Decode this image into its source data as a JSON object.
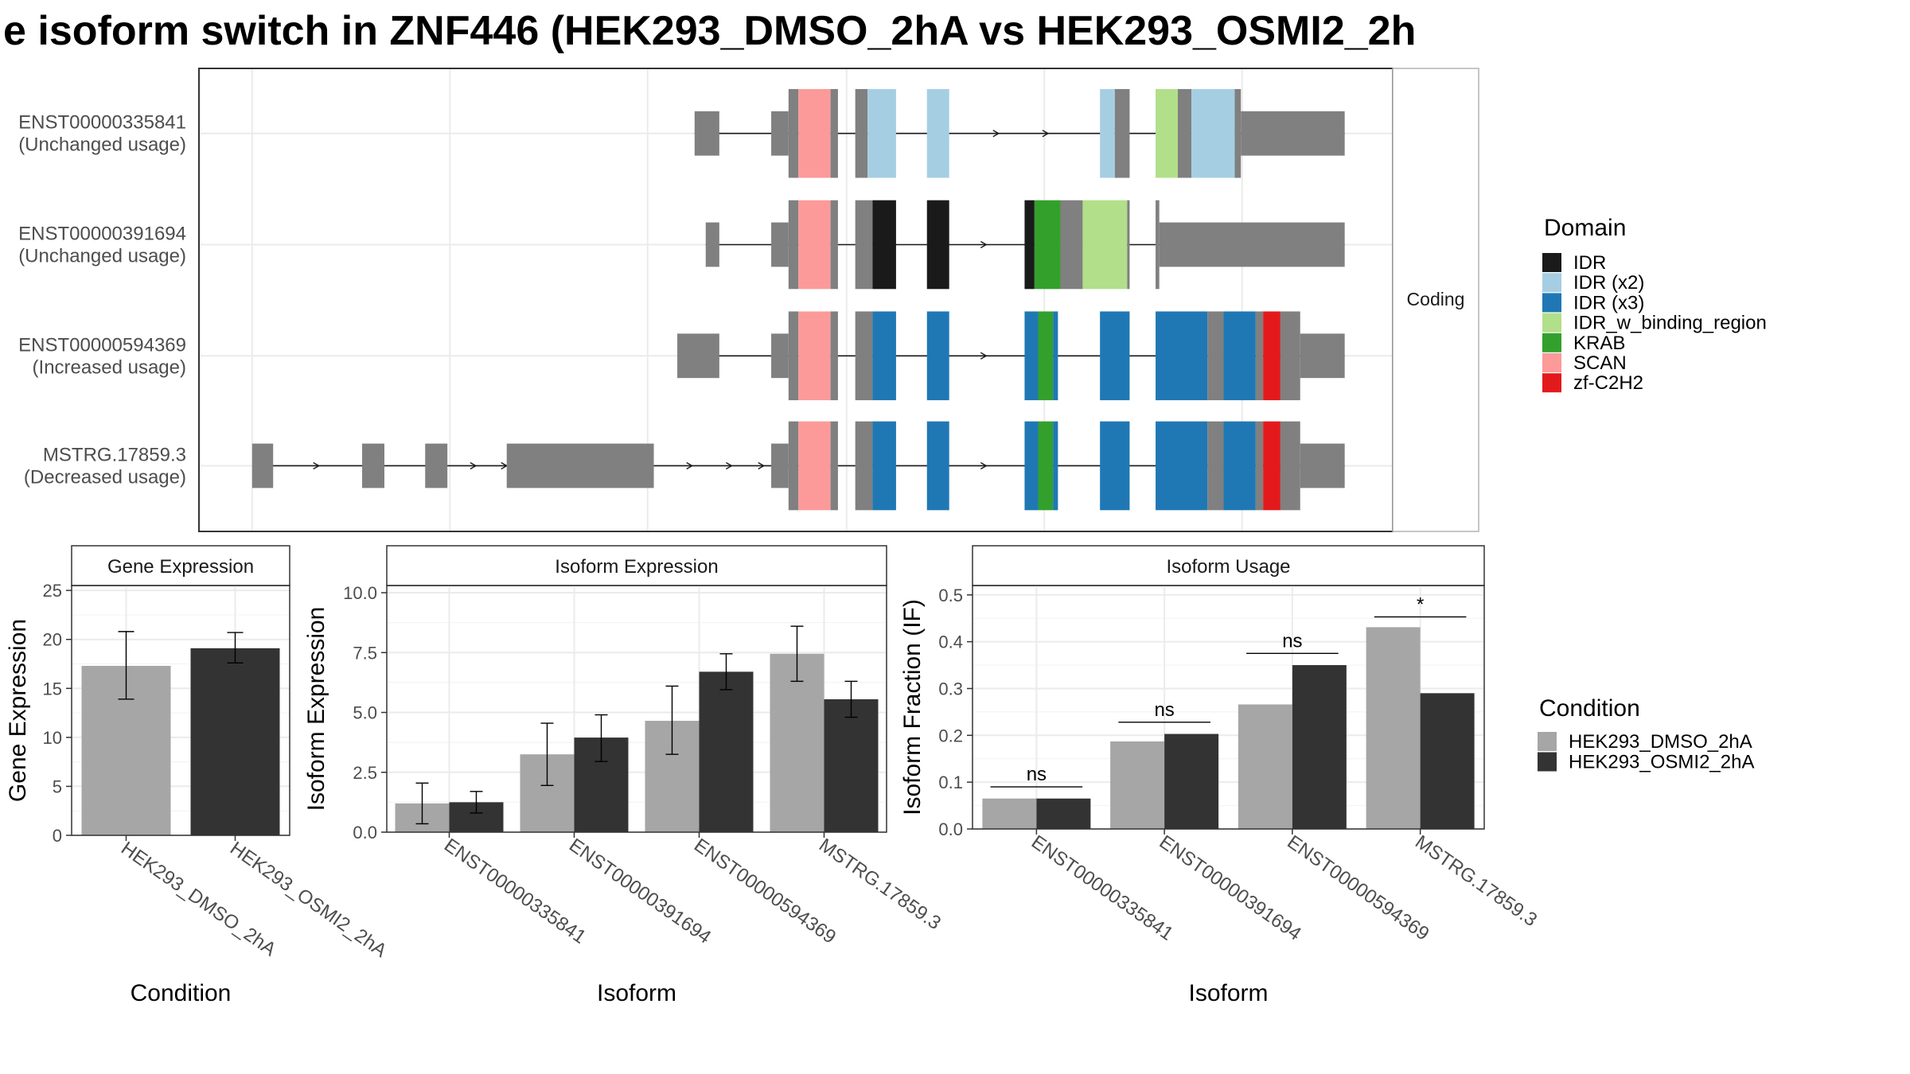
{
  "title": "e isoform switch in ZNF446 (HEK293_DMSO_2hA vs HEK293_OSMI2_2h",
  "colors": {
    "intron_exon": "#808080",
    "IDR": "#1a1a1a",
    "IDR (x2)": "#a6cee3",
    "IDR (x3)": "#1f78b4",
    "IDR_w_binding_region": "#b2df8a",
    "KRAB": "#33a02c",
    "SCAN": "#fb9a99",
    "zf-C2H2": "#e31a1c",
    "cond1": "#a6a6a6",
    "cond2": "#333333"
  },
  "structure": {
    "strip_label": "Coding",
    "transcripts": [
      {
        "id": "ENST00000335841",
        "label": "(Unchanged usage)",
        "segments": [
          {
            "s": 562,
            "e": 582,
            "t": "utr"
          },
          {
            "s": 624,
            "e": 638,
            "t": "utr"
          },
          {
            "s": 638,
            "e": 646,
            "t": "cds"
          },
          {
            "s": 646,
            "e": 672,
            "t": "SCAN"
          },
          {
            "s": 672,
            "e": 678,
            "t": "cds"
          },
          {
            "s": 692,
            "e": 702,
            "t": "cds"
          },
          {
            "s": 702,
            "e": 725,
            "t": "IDR (x2)"
          },
          {
            "s": 750,
            "e": 768,
            "t": "IDR (x2)"
          },
          {
            "s": 890,
            "e": 902,
            "t": "IDR (x2)"
          },
          {
            "s": 902,
            "e": 914,
            "t": "cds"
          },
          {
            "s": 935,
            "e": 953,
            "t": "IDR_w_binding_region"
          },
          {
            "s": 953,
            "e": 964,
            "t": "cds"
          },
          {
            "s": 964,
            "e": 999,
            "t": "IDR (x2)"
          },
          {
            "s": 999,
            "e": 1004,
            "t": "cds"
          },
          {
            "s": 1004,
            "e": 1088,
            "t": "utr"
          }
        ],
        "arrows": [
          808,
          848
        ]
      },
      {
        "id": "ENST00000391694",
        "label": "(Unchanged usage)",
        "segments": [
          {
            "s": 571,
            "e": 582,
            "t": "utr"
          },
          {
            "s": 624,
            "e": 638,
            "t": "utr"
          },
          {
            "s": 638,
            "e": 646,
            "t": "cds"
          },
          {
            "s": 646,
            "e": 672,
            "t": "SCAN"
          },
          {
            "s": 672,
            "e": 678,
            "t": "cds"
          },
          {
            "s": 692,
            "e": 706,
            "t": "cds"
          },
          {
            "s": 706,
            "e": 725,
            "t": "IDR"
          },
          {
            "s": 750,
            "e": 768,
            "t": "IDR"
          },
          {
            "s": 829,
            "e": 837,
            "t": "IDR"
          },
          {
            "s": 837,
            "e": 858,
            "t": "KRAB"
          },
          {
            "s": 858,
            "e": 876,
            "t": "cds"
          },
          {
            "s": 876,
            "e": 912,
            "t": "IDR_w_binding_region"
          },
          {
            "s": 912,
            "e": 914,
            "t": "cds"
          },
          {
            "s": 935,
            "e": 938,
            "t": "cds"
          },
          {
            "s": 938,
            "e": 1088,
            "t": "utr"
          }
        ],
        "arrows": [
          798
        ]
      },
      {
        "id": "ENST00000594369",
        "label": "(Increased usage)",
        "segments": [
          {
            "s": 548,
            "e": 582,
            "t": "utr"
          },
          {
            "s": 624,
            "e": 638,
            "t": "utr"
          },
          {
            "s": 638,
            "e": 646,
            "t": "cds"
          },
          {
            "s": 646,
            "e": 672,
            "t": "SCAN"
          },
          {
            "s": 672,
            "e": 678,
            "t": "cds"
          },
          {
            "s": 692,
            "e": 706,
            "t": "cds"
          },
          {
            "s": 706,
            "e": 725,
            "t": "IDR (x3)"
          },
          {
            "s": 750,
            "e": 768,
            "t": "IDR (x3)"
          },
          {
            "s": 829,
            "e": 840,
            "t": "IDR (x3)"
          },
          {
            "s": 840,
            "e": 852,
            "t": "KRAB"
          },
          {
            "s": 852,
            "e": 856,
            "t": "IDR (x3)"
          },
          {
            "s": 890,
            "e": 914,
            "t": "IDR (x3)"
          },
          {
            "s": 935,
            "e": 977,
            "t": "IDR (x3)"
          },
          {
            "s": 977,
            "e": 990,
            "t": "cds"
          },
          {
            "s": 990,
            "e": 1016,
            "t": "IDR (x3)"
          },
          {
            "s": 1016,
            "e": 1022,
            "t": "cds"
          },
          {
            "s": 1022,
            "e": 1036,
            "t": "zf-C2H2"
          },
          {
            "s": 1036,
            "e": 1052,
            "t": "cds"
          },
          {
            "s": 1052,
            "e": 1088,
            "t": "utr"
          }
        ],
        "arrows": [
          798
        ]
      },
      {
        "id": "MSTRG.17859.3",
        "label": "(Decreased usage)",
        "segments": [
          {
            "s": 204,
            "e": 221,
            "t": "utr"
          },
          {
            "s": 293,
            "e": 311,
            "t": "utr"
          },
          {
            "s": 344,
            "e": 362,
            "t": "utr"
          },
          {
            "s": 410,
            "e": 529,
            "t": "utr"
          },
          {
            "s": 624,
            "e": 638,
            "t": "utr"
          },
          {
            "s": 638,
            "e": 646,
            "t": "cds"
          },
          {
            "s": 646,
            "e": 672,
            "t": "SCAN"
          },
          {
            "s": 672,
            "e": 678,
            "t": "cds"
          },
          {
            "s": 692,
            "e": 706,
            "t": "cds"
          },
          {
            "s": 706,
            "e": 725,
            "t": "IDR (x3)"
          },
          {
            "s": 750,
            "e": 768,
            "t": "IDR (x3)"
          },
          {
            "s": 829,
            "e": 840,
            "t": "IDR (x3)"
          },
          {
            "s": 840,
            "e": 852,
            "t": "KRAB"
          },
          {
            "s": 852,
            "e": 856,
            "t": "IDR (x3)"
          },
          {
            "s": 890,
            "e": 914,
            "t": "IDR (x3)"
          },
          {
            "s": 935,
            "e": 977,
            "t": "IDR (x3)"
          },
          {
            "s": 977,
            "e": 990,
            "t": "cds"
          },
          {
            "s": 990,
            "e": 1016,
            "t": "IDR (x3)"
          },
          {
            "s": 1016,
            "e": 1022,
            "t": "cds"
          },
          {
            "s": 1022,
            "e": 1036,
            "t": "zf-C2H2"
          },
          {
            "s": 1036,
            "e": 1052,
            "t": "cds"
          },
          {
            "s": 1052,
            "e": 1088,
            "t": "utr"
          }
        ],
        "arrows": [
          258,
          385,
          410,
          560,
          592,
          618,
          798
        ]
      }
    ]
  },
  "legend_domain": {
    "title": "Domain",
    "items": [
      "IDR",
      "IDR (x2)",
      "IDR (x3)",
      "IDR_w_binding_region",
      "KRAB",
      "SCAN",
      "zf-C2H2"
    ]
  },
  "legend_condition": {
    "title": "Condition",
    "items": [
      "HEK293_DMSO_2hA",
      "HEK293_OSMI2_2hA"
    ]
  },
  "chart_data": [
    {
      "type": "bar",
      "title": "Gene Expression",
      "xlabel": "Condition",
      "ylabel": "Gene Expression",
      "ylim": [
        0,
        25.5
      ],
      "yticks": [
        "0",
        "5",
        "10",
        "15",
        "20",
        "25"
      ],
      "yticks_values": [
        0,
        5,
        10,
        15,
        20,
        25
      ],
      "categories": [
        "HEK293_DMSO_2hA",
        "HEK293_OSMI2_2hA"
      ],
      "values": [
        17.3,
        19.1
      ],
      "err_low": [
        13.9,
        17.6
      ],
      "err_high": [
        20.8,
        20.7
      ]
    },
    {
      "type": "bar",
      "title": "Isoform Expression",
      "xlabel": "Isoform",
      "ylabel": "Isoform Expression",
      "ylim": [
        0,
        10.3
      ],
      "yticks": [
        "0.0",
        "2.5",
        "5.0",
        "7.5",
        "10.0"
      ],
      "yticks_values": [
        0,
        2.5,
        5,
        7.5,
        10
      ],
      "categories": [
        "ENST00000335841",
        "ENST00000391694",
        "ENST00000594369",
        "MSTRG.17859.3"
      ],
      "series": [
        {
          "name": "HEK293_DMSO_2hA",
          "values": [
            1.2,
            3.25,
            4.65,
            7.45
          ],
          "err_low": [
            0.35,
            1.95,
            3.25,
            6.3
          ],
          "err_high": [
            2.05,
            4.55,
            6.1,
            8.6
          ]
        },
        {
          "name": "HEK293_OSMI2_2hA",
          "values": [
            1.25,
            3.95,
            6.7,
            5.55
          ],
          "err_low": [
            0.8,
            2.95,
            5.95,
            4.8
          ],
          "err_high": [
            1.7,
            4.9,
            7.45,
            6.3
          ]
        }
      ]
    },
    {
      "type": "bar",
      "title": "Isoform Usage",
      "xlabel": "Isoform",
      "ylabel": "Isoform Fraction (IF)",
      "ylim": [
        0,
        0.52
      ],
      "yticks": [
        "0.0",
        "0.1",
        "0.2",
        "0.3",
        "0.4",
        "0.5"
      ],
      "yticks_values": [
        0,
        0.1,
        0.2,
        0.3,
        0.4,
        0.5
      ],
      "categories": [
        "ENST00000335841",
        "ENST00000391694",
        "ENST00000594369",
        "MSTRG.17859.3"
      ],
      "series": [
        {
          "name": "HEK293_DMSO_2hA",
          "values": [
            0.065,
            0.187,
            0.266,
            0.431
          ]
        },
        {
          "name": "HEK293_OSMI2_2hA",
          "values": [
            0.065,
            0.203,
            0.35,
            0.29
          ]
        }
      ],
      "annotations": [
        {
          "category": 0,
          "text": "ns",
          "y": 0.09
        },
        {
          "category": 1,
          "text": "ns",
          "y": 0.228
        },
        {
          "category": 2,
          "text": "ns",
          "y": 0.375
        },
        {
          "category": 3,
          "text": "*",
          "y": 0.453
        }
      ]
    }
  ]
}
